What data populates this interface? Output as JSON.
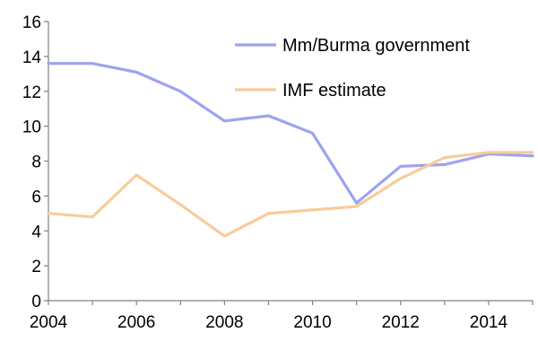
{
  "chart_data": {
    "type": "line",
    "title": "",
    "xlabel": "",
    "ylabel": "",
    "x": [
      2004,
      2005,
      2006,
      2007,
      2008,
      2009,
      2010,
      2011,
      2012,
      2013,
      2014,
      2015
    ],
    "xlim": [
      2004,
      2015
    ],
    "ylim": [
      0,
      16
    ],
    "x_ticks": [
      "2004",
      "2006",
      "2008",
      "2010",
      "2012",
      "2014"
    ],
    "y_ticks": [
      "0",
      "2",
      "4",
      "6",
      "8",
      "10",
      "12",
      "14",
      "16"
    ],
    "grid": false,
    "legend_position": "top-right",
    "series": [
      {
        "name": "Mm/Burma government",
        "color": "#9ea3ee",
        "values": [
          13.6,
          13.6,
          13.1,
          12.0,
          10.3,
          10.6,
          9.6,
          5.6,
          7.7,
          7.8,
          8.4,
          8.3
        ]
      },
      {
        "name": "IMF estimate",
        "color": "#f8cc9b",
        "values": [
          5.0,
          4.8,
          7.2,
          5.5,
          3.7,
          5.0,
          5.2,
          5.4,
          7.0,
          8.2,
          8.5,
          8.5
        ]
      }
    ],
    "axis_color": "#808080"
  }
}
